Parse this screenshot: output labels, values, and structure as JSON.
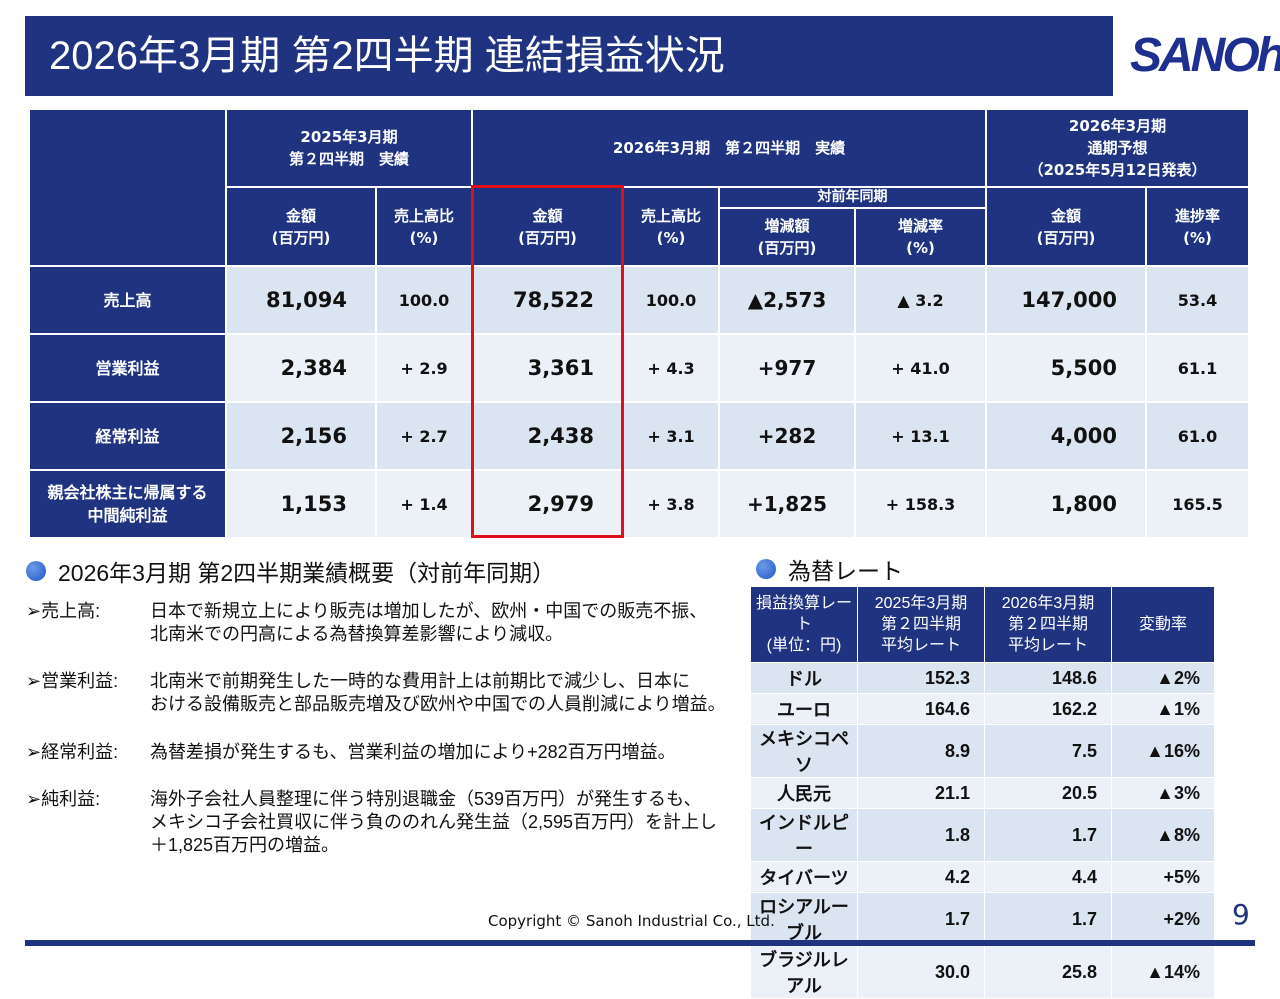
{
  "title": "2026年3月期 第2四半期 連結損益状況",
  "logo": "SANOh",
  "colors": {
    "navy": "#1f3381",
    "highlight": "#e0101a"
  },
  "main_table": {
    "h_prev": "2025年3月期\n第２四半期　実績",
    "h_cur": "2026年3月期　第２四半期　実績",
    "h_fc": "2026年3月期\n通期予想\n（2025年5月12日発表）",
    "h_yoy": "対前年同期",
    "h_amount": "金額\n(百万円)",
    "h_ratio": "売上高比\n(%)",
    "h_diff": "増減額\n(百万円)",
    "h_rate": "増減率\n(%)",
    "h_progress": "進捗率\n(%)",
    "rows": [
      {
        "label": "売上高",
        "prev": "81,094",
        "prev_r": "100.0",
        "cur": "78,522",
        "cur_r": "100.0",
        "diff": "▲2,573",
        "rate": "▲ 3.2",
        "fc": "147,000",
        "prog": "53.4"
      },
      {
        "label": "営業利益",
        "prev": "2,384",
        "prev_r": "+ 2.9",
        "cur": "3,361",
        "cur_r": "+ 4.3",
        "diff": "+977",
        "rate": "+ 41.0",
        "fc": "5,500",
        "prog": "61.1"
      },
      {
        "label": "経常利益",
        "prev": "2,156",
        "prev_r": "+ 2.7",
        "cur": "2,438",
        "cur_r": "+ 3.1",
        "diff": "+282",
        "rate": "+ 13.1",
        "fc": "4,000",
        "prog": "61.0"
      },
      {
        "label": "親会社株主に帰属する\n中間純利益",
        "prev": "1,153",
        "prev_r": "+ 1.4",
        "cur": "2,979",
        "cur_r": "+ 3.8",
        "diff": "+1,825",
        "rate": "+ 158.3",
        "fc": "1,800",
        "prog": "165.5"
      }
    ]
  },
  "summary": {
    "heading": "2026年3月期 第2四半期業績概要（対前年同期）",
    "items": [
      {
        "key": "➢売上高:",
        "text": "日本で新規立上により販売は増加したが、欧州・中国での販売不振、\n北南米での円高による為替換算差影響により減収。"
      },
      {
        "key": "➢営業利益:",
        "text": "北南米で前期発生した一時的な費用計上は前期比で減少し、日本に\nおける設備販売と部品販売増及び欧州や中国での人員削減により増益。"
      },
      {
        "key": "➢経常利益:",
        "text": "為替差損が発生するも、営業利益の増加により+282百万円増益。"
      },
      {
        "key": "➢純利益:",
        "text": "海外子会社人員整理に伴う特別退職金（539百万円）が発生するも、\nメキシコ子会社買収に伴う負ののれん発生益（2,595百万円）を計上し\n＋1,825百万円の増益。"
      }
    ]
  },
  "fx": {
    "heading": "為替レート",
    "headers": [
      "損益換算レート\n(単位：円)",
      "2025年3月期\n第２四半期\n平均レート",
      "2026年3月期\n第２四半期\n平均レート",
      "変動率"
    ],
    "rows": [
      [
        "ドル",
        "152.3",
        "148.6",
        "▲2%"
      ],
      [
        "ユーロ",
        "164.6",
        "162.2",
        "▲1%"
      ],
      [
        "メキシコペソ",
        "8.9",
        "7.5",
        "▲16%"
      ],
      [
        "人民元",
        "21.1",
        "20.5",
        "▲3%"
      ],
      [
        "インドルピー",
        "1.8",
        "1.7",
        "▲8%"
      ],
      [
        "タイバーツ",
        "4.2",
        "4.4",
        "+5%"
      ],
      [
        "ロシアルーブル",
        "1.7",
        "1.7",
        "+2%"
      ],
      [
        "ブラジルレアル",
        "30.0",
        "25.8",
        "▲14%"
      ]
    ]
  },
  "copyright": "Copyright © Sanoh Industrial Co., Ltd.",
  "page_number": "9"
}
